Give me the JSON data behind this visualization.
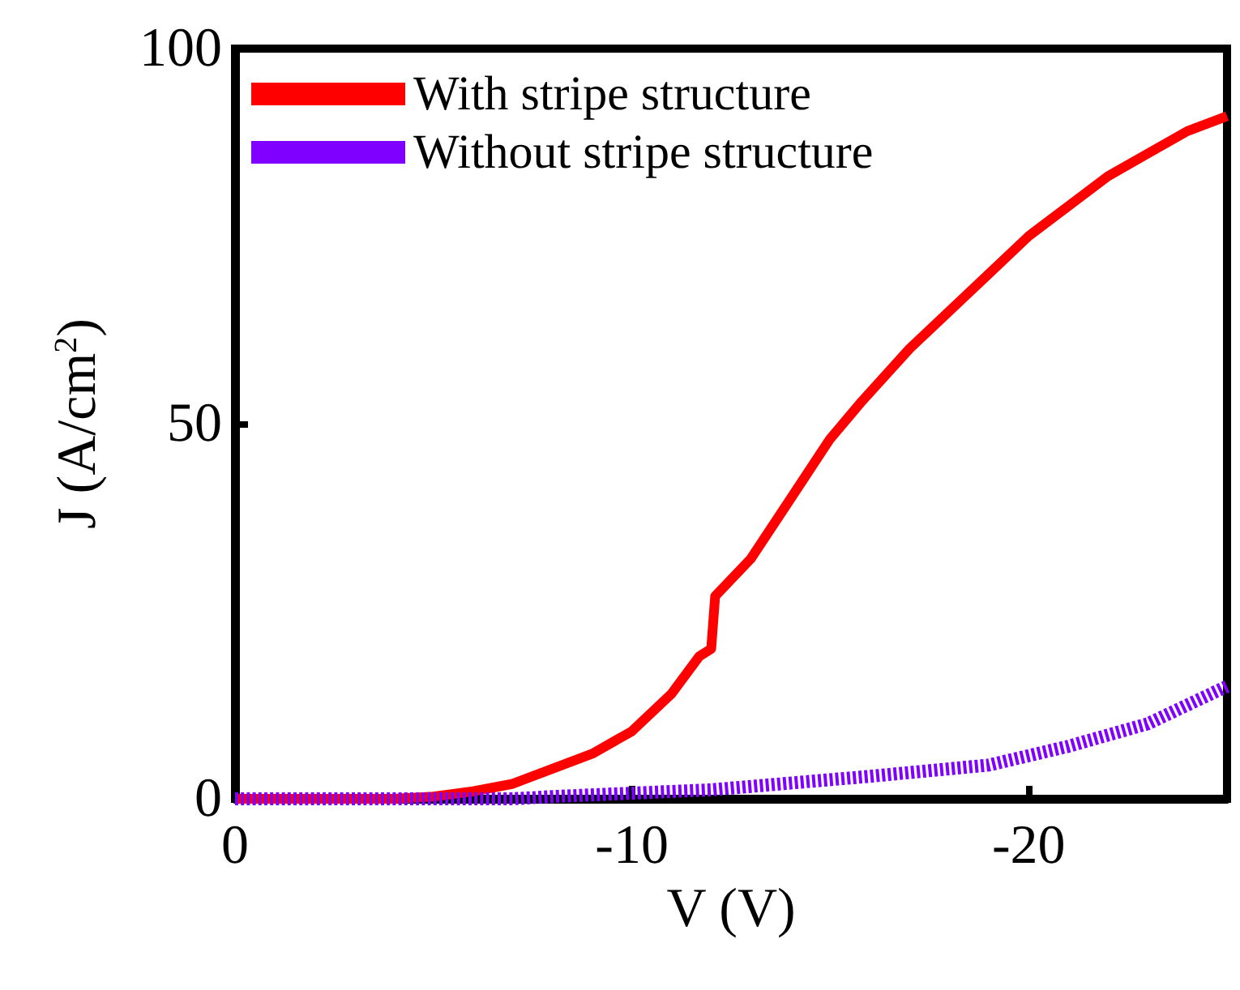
{
  "chart_data": {
    "type": "line",
    "xlabel": "V (V)",
    "ylabel": "J (A/cm$^{2}$)",
    "xlim": [
      0,
      -25
    ],
    "xticks": [
      0,
      -10,
      -20
    ],
    "ylim": [
      0,
      100
    ],
    "yticks": [
      0,
      50,
      100
    ],
    "grid": false,
    "legend": "top left",
    "series": [
      {
        "name": "With stripe structure",
        "color": "#ff0000",
        "line_style": "solid",
        "x": [
          0,
          -4,
          -5,
          -6,
          -7,
          -8,
          -9,
          -10,
          -11,
          -11.7,
          -12,
          -12.1,
          -13,
          -14,
          -15,
          -15.8,
          -17,
          -18,
          -19,
          -20,
          -21,
          -22,
          -23,
          -24,
          -25
        ],
        "values": [
          0,
          0,
          0.3,
          1,
          2,
          4,
          6,
          9,
          14,
          19,
          20,
          27,
          32,
          40,
          48,
          53,
          60,
          65,
          70,
          75,
          79,
          83,
          86,
          89,
          91
        ]
      },
      {
        "name": "Without stripe structure",
        "color": "#8000ff",
        "line_style": "dashed",
        "x": [
          0,
          -7,
          -8,
          -12,
          -16,
          -19,
          -21,
          -23,
          -25
        ],
        "values": [
          0,
          0,
          0.3,
          1.2,
          3,
          4.5,
          7,
          10,
          15
        ]
      }
    ]
  }
}
